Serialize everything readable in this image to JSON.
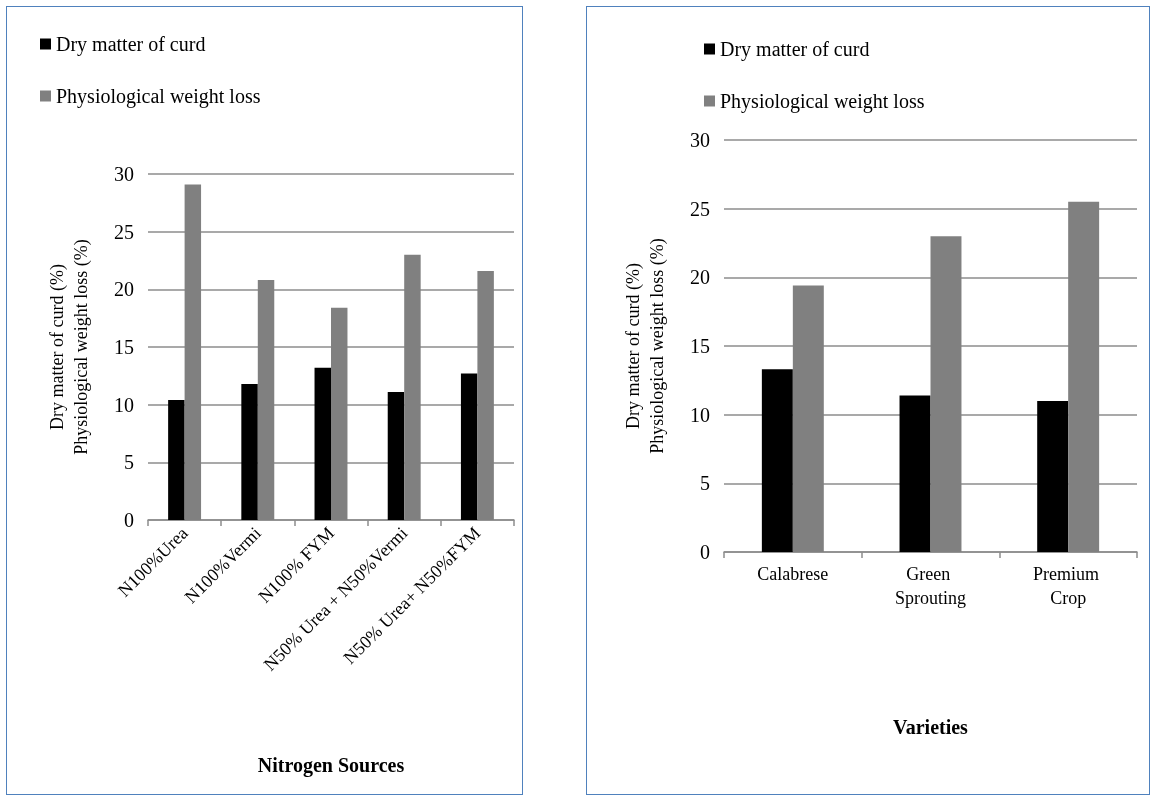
{
  "chart_data": [
    {
      "type": "bar",
      "xlabel": "Nitrogen Sources",
      "ylabel": "Dry matter of curd (%)\nPhysiological weight loss (%)",
      "categories": [
        "N100%Urea",
        "N100%Vermi",
        "N100% FYM",
        "N50% Urea + N50%Vermi",
        "N50% Urea+ N50%FYM"
      ],
      "series": [
        {
          "name": "Dry matter of curd",
          "color": "#000000",
          "values": [
            10.4,
            11.8,
            13.2,
            11.1,
            12.7
          ]
        },
        {
          "name": "Physiological weight loss",
          "color": "#808080",
          "values": [
            29.1,
            20.8,
            18.4,
            23.0,
            21.6
          ]
        }
      ],
      "ylim": [
        0,
        30
      ],
      "yticks": [
        0,
        5,
        10,
        15,
        20,
        25,
        30
      ],
      "grid": "y",
      "legend": "top"
    },
    {
      "type": "bar",
      "xlabel": "Varieties",
      "ylabel": "Dry matter of curd (%)\nPhysiological weight loss (%)",
      "categories": [
        "Calabrese",
        "Green Sprouting",
        "Premium Crop"
      ],
      "series": [
        {
          "name": "Dry matter of curd",
          "color": "#000000",
          "values": [
            13.3,
            11.4,
            11.0
          ]
        },
        {
          "name": "Physiological weight loss",
          "color": "#808080",
          "values": [
            19.4,
            23.0,
            25.5
          ]
        }
      ],
      "ylim": [
        0,
        30
      ],
      "yticks": [
        0,
        5,
        10,
        15,
        20,
        25,
        30
      ],
      "grid": "y",
      "legend": "top"
    }
  ]
}
